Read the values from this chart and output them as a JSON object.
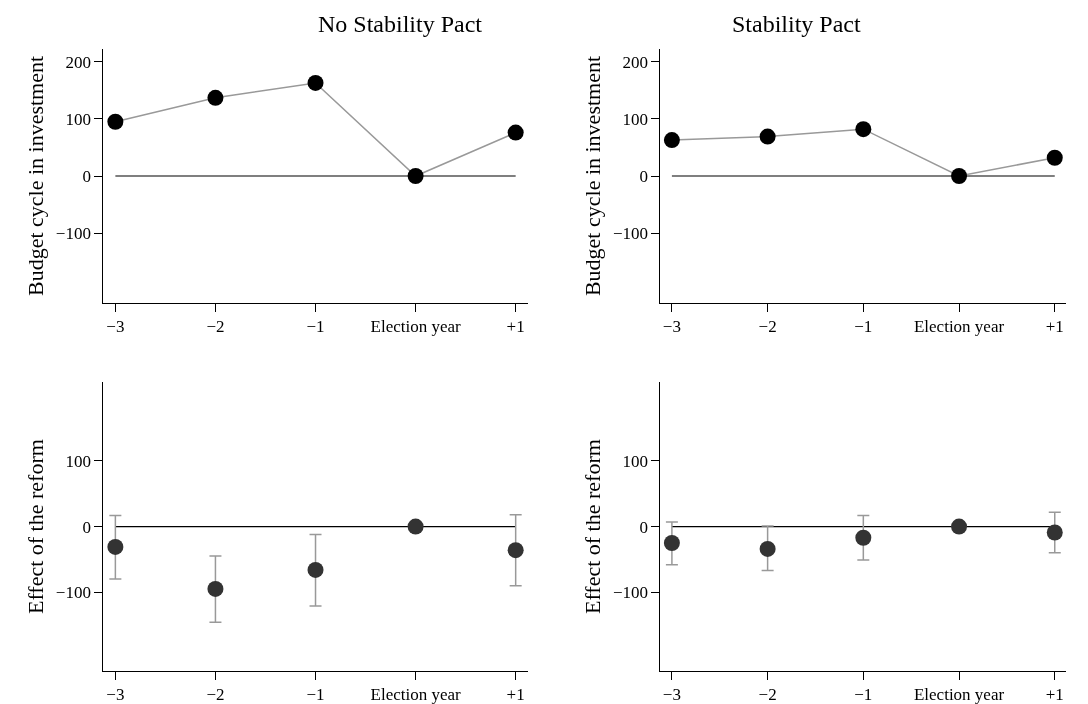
{
  "chart_data": [
    {
      "type": "line",
      "title": "No Stability Pact",
      "ylabel": "Budget cycle in investment",
      "categories": [
        "−3",
        "−2",
        "−1",
        "Election year",
        "+1"
      ],
      "series": [
        {
          "color": "#000000",
          "values": [
            95,
            137,
            163,
            0,
            76
          ]
        }
      ],
      "marker": "circle",
      "ylim": [
        -222,
        222
      ],
      "yticks": [
        200,
        100,
        0,
        -100
      ],
      "ref_lines": [
        {
          "axis": "y",
          "value": 0,
          "color": "#000000"
        }
      ]
    },
    {
      "type": "line",
      "title": "Stability Pact",
      "ylabel": "Budget cycle in investment",
      "categories": [
        "−3",
        "−2",
        "−1",
        "Election year",
        "+1"
      ],
      "series": [
        {
          "color": "#000000",
          "values": [
            63,
            69,
            82,
            0,
            32
          ]
        }
      ],
      "marker": "circle",
      "ylim": [
        -222,
        222
      ],
      "yticks": [
        200,
        100,
        0,
        -100
      ],
      "ref_lines": [
        {
          "axis": "y",
          "value": 0,
          "color": "#000000"
        }
      ]
    },
    {
      "type": "scatter",
      "ylabel": "Effect of the reform",
      "categories": [
        "−3",
        "−2",
        "−1",
        "Election year",
        "+1"
      ],
      "series": [
        {
          "color": "#333333",
          "values": [
            -31,
            -95,
            -66,
            0,
            -36
          ],
          "errors": [
            [
              -80,
              17
            ],
            [
              -146,
              -45
            ],
            [
              -121,
              -12
            ],
            null,
            [
              -90,
              18
            ]
          ]
        }
      ],
      "marker": "circle",
      "ylim": [
        -220,
        220
      ],
      "yticks": [
        100,
        0,
        -100
      ],
      "ref_lines": [
        {
          "axis": "y",
          "value": 0,
          "color": "#000000"
        }
      ]
    },
    {
      "type": "scatter",
      "ylabel": "Effect of the reform",
      "categories": [
        "−3",
        "−2",
        "−1",
        "Election year",
        "+1"
      ],
      "series": [
        {
          "color": "#333333",
          "values": [
            -25,
            -34,
            -17,
            0,
            -9
          ],
          "errors": [
            [
              -58,
              7
            ],
            [
              -67,
              1
            ],
            [
              -51,
              17
            ],
            null,
            [
              -40,
              22
            ]
          ]
        }
      ],
      "marker": "circle",
      "ylim": [
        -220,
        220
      ],
      "yticks": [
        100,
        0,
        -100
      ],
      "ref_lines": [
        {
          "axis": "y",
          "value": 0,
          "color": "#000000"
        }
      ]
    }
  ]
}
